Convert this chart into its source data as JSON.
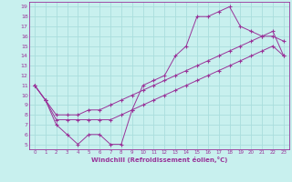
{
  "xlabel": "Windchill (Refroidissement éolien,°C)",
  "bg_color": "#c8f0ee",
  "line_color": "#993399",
  "grid_color": "#aadddd",
  "xlim": [
    -0.5,
    23.5
  ],
  "ylim": [
    4.5,
    19.5
  ],
  "xticks": [
    0,
    1,
    2,
    3,
    4,
    5,
    6,
    7,
    8,
    9,
    10,
    11,
    12,
    13,
    14,
    15,
    16,
    17,
    18,
    19,
    20,
    21,
    22,
    23
  ],
  "yticks": [
    5,
    6,
    7,
    8,
    9,
    10,
    11,
    12,
    13,
    14,
    15,
    16,
    17,
    18,
    19
  ],
  "line1_x": [
    0,
    1,
    2,
    3,
    4,
    5,
    6,
    7,
    8,
    9,
    10,
    11,
    12,
    13,
    14,
    15,
    16,
    17,
    18,
    19,
    20,
    21,
    22,
    23
  ],
  "line1_y": [
    11,
    9.5,
    7,
    6,
    5,
    6,
    6,
    5,
    5,
    8.5,
    11,
    11.5,
    12,
    14,
    15,
    18,
    18,
    18.5,
    19,
    17,
    16.5,
    16,
    16,
    15.5
  ],
  "line2_x": [
    0,
    1,
    2,
    3,
    4,
    5,
    6,
    7,
    8,
    9,
    10,
    11,
    12,
    13,
    14,
    15,
    16,
    17,
    18,
    19,
    20,
    21,
    22,
    23
  ],
  "line2_y": [
    11,
    9.5,
    8,
    8,
    8,
    8.5,
    8.5,
    9,
    9.5,
    10,
    10.5,
    11,
    11.5,
    12,
    12.5,
    13,
    13.5,
    14,
    14.5,
    15,
    15.5,
    16,
    16.5,
    14
  ],
  "line3_x": [
    0,
    1,
    2,
    3,
    4,
    5,
    6,
    7,
    8,
    9,
    10,
    11,
    12,
    13,
    14,
    15,
    16,
    17,
    18,
    19,
    20,
    21,
    22,
    23
  ],
  "line3_y": [
    11,
    9.5,
    7.5,
    7.5,
    7.5,
    7.5,
    7.5,
    7.5,
    8,
    8.5,
    9,
    9.5,
    10,
    10.5,
    11,
    11.5,
    12,
    12.5,
    13,
    13.5,
    14,
    14.5,
    15,
    14
  ]
}
